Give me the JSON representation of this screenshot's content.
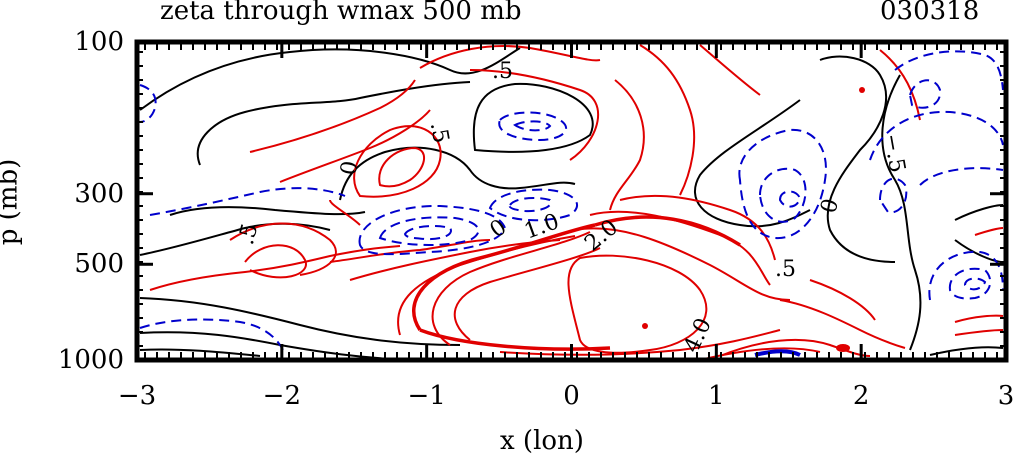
{
  "chart_data": {
    "type": "contour",
    "title": "zeta through wmax 500 mb",
    "date_label": "030318",
    "xlabel": "x (lon)",
    "ylabel": "p (mb)",
    "xlim": [
      -3,
      3
    ],
    "x_ticks": [
      -3,
      -2,
      -1,
      0,
      1,
      2,
      3
    ],
    "x_tick_labels": [
      "−3",
      "−2",
      "−1",
      "0",
      "1",
      "2",
      "3"
    ],
    "y_ticks": [
      100,
      300,
      500,
      1000
    ],
    "y_tick_labels": [
      "100",
      "300",
      "500",
      "1000"
    ],
    "y_scale": "log (pressure, increasing downward)",
    "ylim": [
      1000,
      100
    ],
    "contour_labels": [
      ".5",
      ".5",
      "0",
      ".5",
      "0",
      "1.0",
      "2.0",
      "4.0",
      ".5",
      "0",
      "−.5"
    ],
    "series_colors": {
      "positive": "#e00000",
      "zero": "#000000",
      "negative": "#0000cc"
    }
  }
}
